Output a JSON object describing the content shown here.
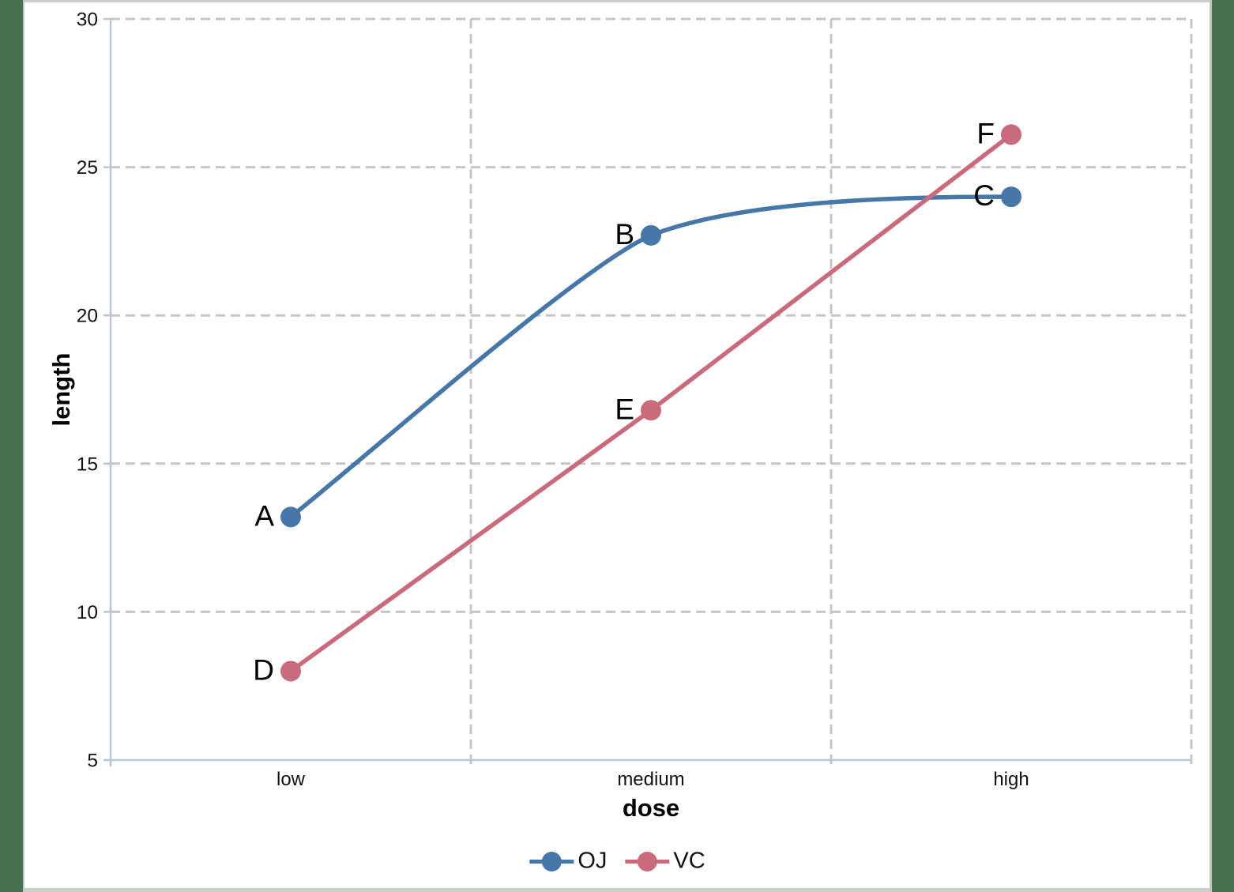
{
  "page": {
    "background_color": "#487150",
    "canvas_color": "#ffffff",
    "canvas_border_color": "#c9cdc9"
  },
  "chart_data": {
    "type": "line",
    "title": "",
    "xlabel": "dose",
    "ylabel": "length",
    "categories": [
      "low",
      "medium",
      "high"
    ],
    "series": [
      {
        "name": "OJ",
        "color": "#4677a8",
        "values": [
          13.2,
          22.7,
          24.0
        ],
        "point_labels": [
          "A",
          "B",
          "C"
        ],
        "line_style": "smooth"
      },
      {
        "name": "VC",
        "color": "#c96b7c",
        "values": [
          8.0,
          16.8,
          26.1
        ],
        "point_labels": [
          "D",
          "E",
          "F"
        ],
        "line_style": "straight"
      }
    ],
    "ylim": [
      5,
      30
    ],
    "yticks": [
      5,
      10,
      15,
      20,
      25,
      30
    ],
    "grid": "dashed gray horizontal gridlines at yticks and vertical gridlines at category boundaries",
    "gridline_color": "#c6c6c6",
    "axis_line_color": "#bcc5d2",
    "tick_label_color": "#111111",
    "point_label_color": "#000000",
    "legend_position": "bottom center"
  }
}
